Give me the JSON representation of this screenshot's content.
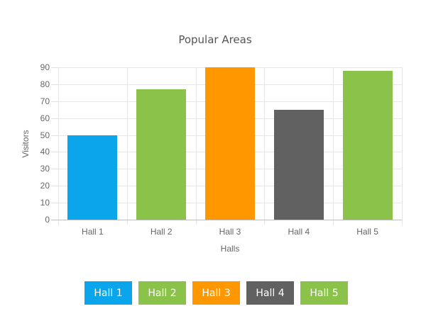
{
  "chart_data": {
    "type": "bar",
    "title": "Popular Areas",
    "xlabel": "Halls",
    "ylabel": "Visitors",
    "categories": [
      "Hall 1",
      "Hall 2",
      "Hall 3",
      "Hall 4",
      "Hall 5"
    ],
    "values": [
      50,
      77,
      90,
      65,
      88
    ],
    "colors": [
      "#0ba5ec",
      "#8bc34a",
      "#ff9800",
      "#616161",
      "#8bc34a"
    ],
    "ylim": [
      0,
      90
    ],
    "yticks": [
      0,
      10,
      20,
      30,
      40,
      50,
      60,
      70,
      80,
      90
    ],
    "grid": true,
    "legend_position": "bottom"
  },
  "legend": {
    "items": [
      {
        "label": "Hall 1",
        "color": "#0ba5ec"
      },
      {
        "label": "Hall 2",
        "color": "#8bc34a"
      },
      {
        "label": "Hall 3",
        "color": "#ff9800"
      },
      {
        "label": "Hall 4",
        "color": "#616161"
      },
      {
        "label": "Hall 5",
        "color": "#8bc34a"
      }
    ]
  }
}
